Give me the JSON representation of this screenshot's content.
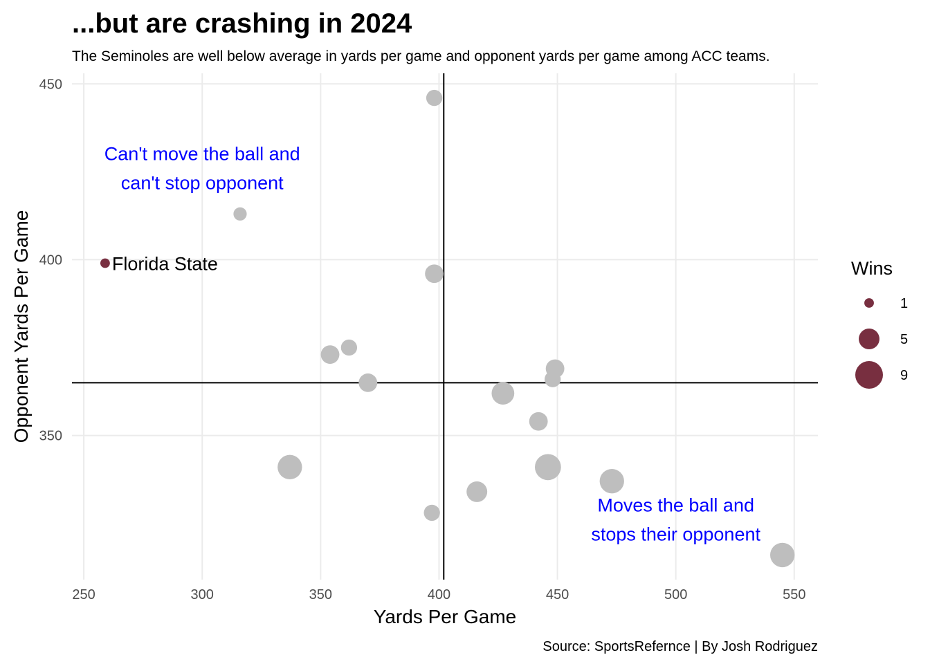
{
  "chart_data": {
    "type": "scatter",
    "title": "...but are crashing in 2024",
    "subtitle": "The Seminoles are well below average in yards per game and opponent yards per game among ACC teams.",
    "xlabel": "Yards Per Game",
    "ylabel": "Opponent Yards Per Game",
    "caption": "Source: SportsRefernce | By Josh Rodriguez",
    "xlim": [
      245,
      560
    ],
    "ylim": [
      309,
      453
    ],
    "x_ticks": [
      "250",
      "300",
      "350",
      "400",
      "450",
      "500",
      "550"
    ],
    "y_ticks": [
      "350",
      "400",
      "450"
    ],
    "grid": true,
    "reference_lines": {
      "x_mean": 402,
      "y_mean": 365
    },
    "highlight_color": "#782F40",
    "base_color": "#bebebe",
    "points": [
      {
        "team": "Florida State",
        "x": 259,
        "y": 399,
        "wins": 1,
        "highlight": true
      },
      {
        "team": "",
        "x": 398,
        "y": 446,
        "wins": 3
      },
      {
        "team": "",
        "x": 316,
        "y": 413,
        "wins": 2
      },
      {
        "team": "",
        "x": 398,
        "y": 396,
        "wins": 4
      },
      {
        "team": "",
        "x": 354,
        "y": 373,
        "wins": 4
      },
      {
        "team": "",
        "x": 362,
        "y": 375,
        "wins": 3
      },
      {
        "team": "",
        "x": 370,
        "y": 365,
        "wins": 4
      },
      {
        "team": "",
        "x": 449,
        "y": 369,
        "wins": 4
      },
      {
        "team": "",
        "x": 448,
        "y": 366,
        "wins": 3
      },
      {
        "team": "",
        "x": 427,
        "y": 362,
        "wins": 6
      },
      {
        "team": "",
        "x": 442,
        "y": 354,
        "wins": 4
      },
      {
        "team": "",
        "x": 337,
        "y": 341,
        "wins": 7
      },
      {
        "team": "",
        "x": 446,
        "y": 341,
        "wins": 8
      },
      {
        "team": "",
        "x": 473,
        "y": 337,
        "wins": 7
      },
      {
        "team": "",
        "x": 416,
        "y": 334,
        "wins": 5
      },
      {
        "team": "",
        "x": 397,
        "y": 328,
        "wins": 3
      },
      {
        "team": "",
        "x": 545,
        "y": 316,
        "wins": 7
      }
    ],
    "annotations": [
      {
        "lines": [
          "Can't move the ball and",
          "can't stop opponent"
        ],
        "x": 300,
        "y": 426
      },
      {
        "lines": [
          "Moves the ball and",
          "stops their opponent"
        ],
        "x": 500,
        "y": 326
      }
    ],
    "legend": {
      "title": "Wins",
      "placement": "right",
      "items": [
        {
          "label": "1",
          "wins": 1
        },
        {
          "label": "5",
          "wins": 5
        },
        {
          "label": "9",
          "wins": 9
        }
      ]
    }
  }
}
